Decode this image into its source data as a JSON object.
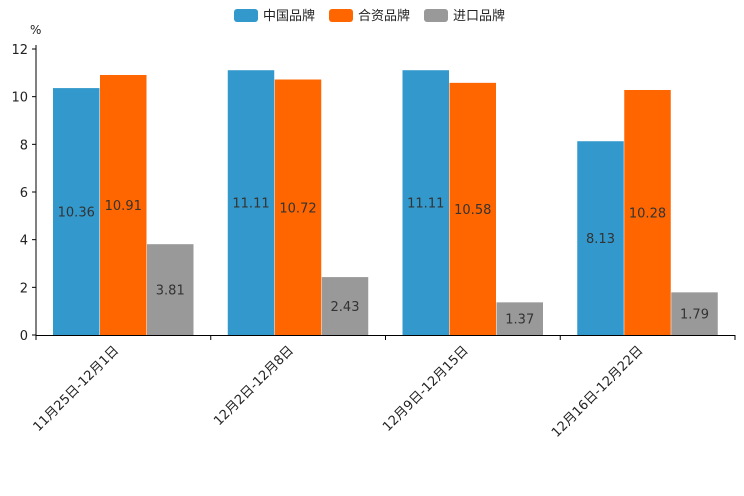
{
  "chart_data": {
    "type": "bar",
    "title": "",
    "xlabel": "",
    "ylabel": "",
    "y_unit": "%",
    "ylim": [
      0,
      12
    ],
    "yticks": [
      0,
      2,
      4,
      6,
      8,
      10,
      12
    ],
    "legend_position": "top-center",
    "categories": [
      "11月25日-12月1日",
      "12月2日-12月8日",
      "12月9日-12月15日",
      "12月16日-12月22日"
    ],
    "series": [
      {
        "name": "中国品牌",
        "color": "#3399CC",
        "values": [
          10.36,
          11.11,
          11.11,
          8.13
        ]
      },
      {
        "name": "合资品牌",
        "color": "#FF6600",
        "values": [
          10.91,
          10.72,
          10.58,
          10.28
        ]
      },
      {
        "name": "进口品牌",
        "color": "#999999",
        "values": [
          3.81,
          2.43,
          1.37,
          1.79
        ]
      }
    ]
  }
}
